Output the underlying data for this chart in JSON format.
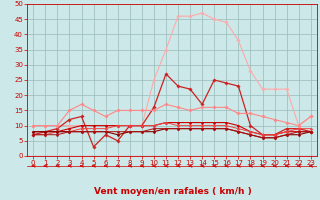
{
  "x": [
    0,
    1,
    2,
    3,
    4,
    5,
    6,
    7,
    8,
    9,
    10,
    11,
    12,
    13,
    14,
    15,
    16,
    17,
    18,
    19,
    20,
    21,
    22,
    23
  ],
  "series": [
    {
      "color": "#ffaaaa",
      "marker": "D",
      "markersize": 1.8,
      "linewidth": 0.8,
      "values": [
        10,
        10,
        10,
        10,
        10,
        10,
        10,
        10,
        10,
        10,
        25,
        35,
        46,
        46,
        47,
        45,
        44,
        38,
        28,
        22,
        22,
        22,
        10,
        13
      ]
    },
    {
      "color": "#cc2222",
      "marker": "D",
      "markersize": 1.8,
      "linewidth": 0.9,
      "values": [
        7,
        8,
        9,
        12,
        13,
        3,
        7,
        5,
        10,
        10,
        16,
        27,
        23,
        22,
        17,
        25,
        24,
        23,
        10,
        7,
        7,
        9,
        9,
        8
      ]
    },
    {
      "color": "#ff8888",
      "marker": "D",
      "markersize": 1.8,
      "linewidth": 0.8,
      "values": [
        10,
        10,
        10,
        15,
        17,
        15,
        13,
        15,
        15,
        15,
        15,
        17,
        16,
        15,
        16,
        16,
        16,
        14,
        14,
        13,
        12,
        11,
        10,
        13
      ]
    },
    {
      "color": "#cc0000",
      "marker": "D",
      "markersize": 1.5,
      "linewidth": 0.8,
      "values": [
        8,
        8,
        8,
        9,
        10,
        10,
        10,
        10,
        10,
        10,
        10,
        11,
        11,
        11,
        11,
        11,
        11,
        10,
        8,
        7,
        7,
        8,
        8,
        8
      ]
    },
    {
      "color": "#ee4444",
      "marker": "D",
      "markersize": 1.5,
      "linewidth": 0.7,
      "values": [
        7,
        7,
        8,
        8,
        9,
        9,
        9,
        10,
        10,
        10,
        10,
        11,
        10,
        10,
        10,
        10,
        10,
        9,
        8,
        7,
        7,
        8,
        9,
        9
      ]
    },
    {
      "color": "#880000",
      "marker": "D",
      "markersize": 1.5,
      "linewidth": 0.8,
      "values": [
        8,
        8,
        8,
        8,
        8,
        8,
        8,
        7,
        8,
        8,
        8,
        9,
        9,
        9,
        9,
        9,
        9,
        8,
        7,
        6,
        6,
        7,
        7,
        8
      ]
    },
    {
      "color": "#aa1111",
      "marker": "D",
      "markersize": 1.5,
      "linewidth": 0.7,
      "values": [
        7,
        7,
        7,
        8,
        8,
        8,
        8,
        8,
        8,
        8,
        9,
        9,
        9,
        9,
        9,
        9,
        9,
        8,
        7,
        6,
        6,
        7,
        8,
        8
      ]
    }
  ],
  "xlabel": "Vent moyen/en rafales ( km/h )",
  "xlim": [
    -0.5,
    23.5
  ],
  "ylim": [
    0,
    50
  ],
  "yticks": [
    0,
    5,
    10,
    15,
    20,
    25,
    30,
    35,
    40,
    45,
    50
  ],
  "xticks": [
    0,
    1,
    2,
    3,
    4,
    5,
    6,
    7,
    8,
    9,
    10,
    11,
    12,
    13,
    14,
    15,
    16,
    17,
    18,
    19,
    20,
    21,
    22,
    23
  ],
  "bg_color": "#cce8e8",
  "grid_color": "#99bbbb",
  "arrow_color": "#cc0000",
  "xlabel_color": "#cc0000",
  "tick_color": "#cc0000",
  "xlabel_fontsize": 6.5,
  "tick_fontsize": 5.0,
  "spine_color": "#cc0000"
}
